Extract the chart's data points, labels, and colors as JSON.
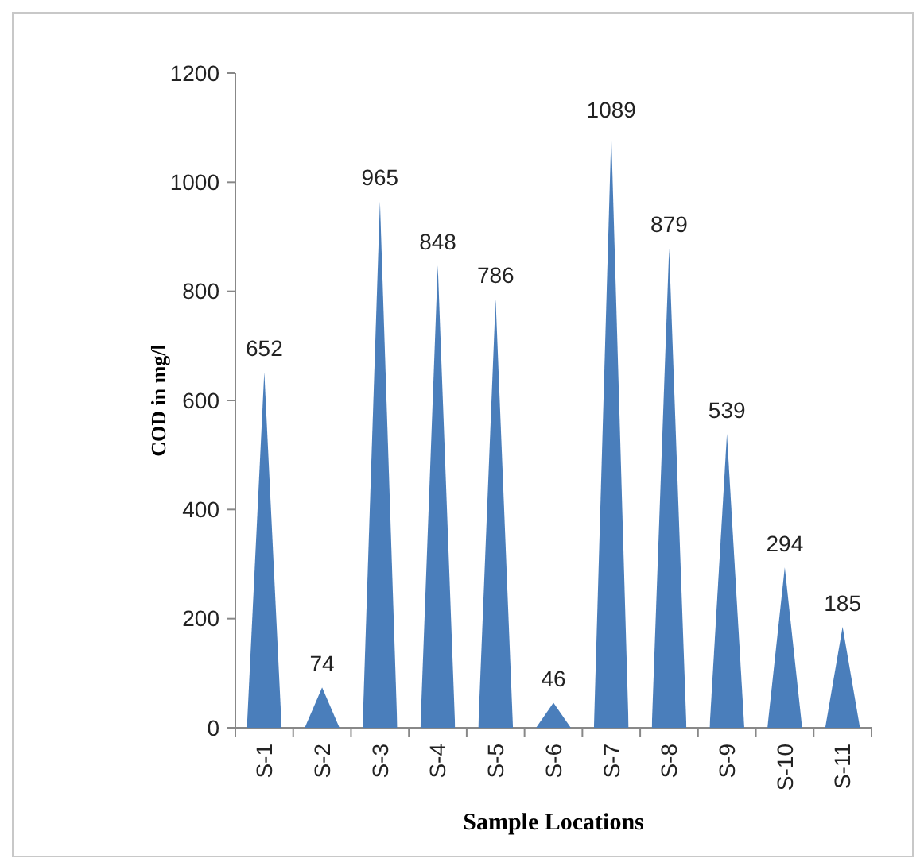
{
  "chart_data": {
    "type": "bar",
    "xlabel": "Sample Locations",
    "ylabel": "COD in mg/l",
    "categories": [
      "S-1",
      "S-2",
      "S-3",
      "S-4",
      "S-5",
      "S-6",
      "S-7",
      "S-8",
      "S-9",
      "S-10",
      "S-11"
    ],
    "values": [
      652,
      74,
      965,
      848,
      786,
      46,
      1089,
      879,
      539,
      294,
      185
    ],
    "color": "#4a7ebb",
    "ylim": [
      0,
      1200
    ],
    "yticks": [
      0,
      200,
      400,
      600,
      800,
      1000,
      1200
    ],
    "data_labels": true,
    "grid": false
  }
}
